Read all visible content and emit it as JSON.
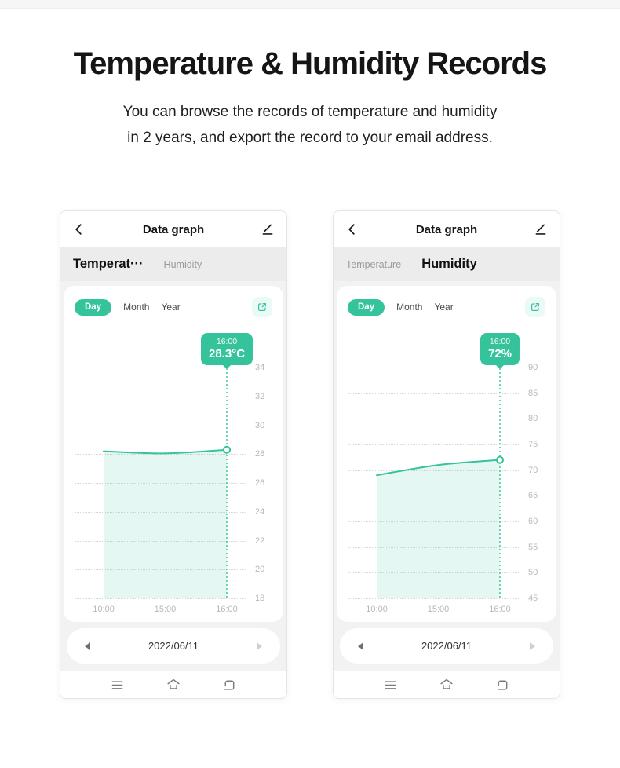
{
  "page": {
    "top_title": "Temperature & Humidity Records",
    "subtitle_line1": "You can browse the records of temperature and humidity",
    "subtitle_line2": "in 2 years, and export the record to your email address."
  },
  "colors": {
    "accent": "#35c39b",
    "accent_fill": "rgba(53,195,155,0.13)",
    "tab_bar_bg": "#ececec",
    "content_bg": "#f2f2f2"
  },
  "phones": [
    {
      "header": {
        "title": "Data graph"
      },
      "tabs": [
        {
          "label": "Temperat···",
          "active": true
        },
        {
          "label": "Humidity",
          "active": false
        }
      ],
      "range_tabs": [
        {
          "label": "Day",
          "active": true
        },
        {
          "label": "Month",
          "active": false
        },
        {
          "label": "Year",
          "active": false
        }
      ],
      "date_nav": {
        "date": "2022/06/11"
      }
    },
    {
      "header": {
        "title": "Data graph"
      },
      "tabs": [
        {
          "label": "Temperature",
          "active": false
        },
        {
          "label": "Humidity",
          "active": true
        }
      ],
      "range_tabs": [
        {
          "label": "Day",
          "active": true
        },
        {
          "label": "Month",
          "active": false
        },
        {
          "label": "Year",
          "active": false
        }
      ],
      "date_nav": {
        "date": "2022/06/11"
      }
    }
  ],
  "chart_data": [
    {
      "type": "area",
      "series_name": "Temperature",
      "x": [
        "10:00",
        "15:00",
        "16:00"
      ],
      "values": [
        28.2,
        28.05,
        28.3
      ],
      "y_ticks": [
        34,
        32,
        30,
        28,
        26,
        24,
        22,
        20,
        18
      ],
      "ylim": [
        18,
        34
      ],
      "grid": "dotted-horizontal",
      "legend": "none",
      "tooltip": {
        "time": "16:00",
        "value": "28.3°C"
      },
      "line_color": "#35c39b",
      "fill_color": "rgba(53,195,155,0.13)"
    },
    {
      "type": "area",
      "series_name": "Humidity",
      "x": [
        "10:00",
        "15:00",
        "16:00"
      ],
      "values": [
        69,
        71,
        72
      ],
      "y_ticks": [
        90,
        85,
        80,
        75,
        70,
        65,
        60,
        55,
        50,
        45
      ],
      "ylim": [
        45,
        90
      ],
      "grid": "dotted-horizontal",
      "legend": "none",
      "tooltip": {
        "time": "16:00",
        "value": "72%"
      },
      "line_color": "#35c39b",
      "fill_color": "rgba(53,195,155,0.13)"
    }
  ]
}
